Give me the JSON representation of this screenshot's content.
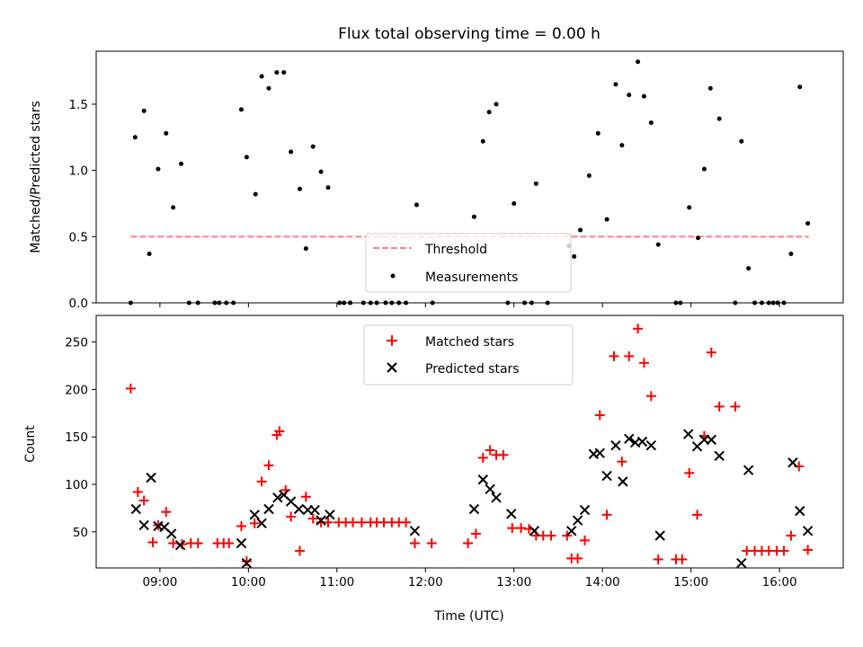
{
  "chart_data": [
    {
      "type": "scatter",
      "title": "Flux total observing time = 0.00 h",
      "xlabel": "",
      "ylabel": "Matched/Predicted stars",
      "ylim": [
        0,
        1.9
      ],
      "yticks": [
        0.0,
        0.5,
        1.0,
        1.5
      ],
      "ytick_labels": [
        "0.0",
        "0.5",
        "1.0",
        "1.5"
      ],
      "xlim_hours": [
        8.28,
        16.72
      ],
      "threshold": {
        "name": "Threshold",
        "value": 0.5,
        "x_start": 8.67,
        "x_end": 16.33,
        "color": "#ff8080"
      },
      "legend": {
        "position": "lower-center",
        "entries": [
          "Threshold",
          "Measurements"
        ]
      },
      "series": [
        {
          "name": "Measurements",
          "color": "#000000",
          "x": [
            8.67,
            8.72,
            8.82,
            8.88,
            8.98,
            9.07,
            9.15,
            9.24,
            9.33,
            9.43,
            9.62,
            9.67,
            9.75,
            9.83,
            9.92,
            9.98,
            10.08,
            10.15,
            10.23,
            10.32,
            10.4,
            10.48,
            10.58,
            10.65,
            10.73,
            10.82,
            10.9,
            11.03,
            11.08,
            11.15,
            11.3,
            11.38,
            11.45,
            11.55,
            11.62,
            11.7,
            11.78,
            11.9,
            12.08,
            12.55,
            12.65,
            12.72,
            12.8,
            12.93,
            13.0,
            13.12,
            13.2,
            13.25,
            13.38,
            13.62,
            13.68,
            13.75,
            13.85,
            13.95,
            14.05,
            14.15,
            14.22,
            14.3,
            14.4,
            14.47,
            14.55,
            14.63,
            14.83,
            14.88,
            14.98,
            15.08,
            15.15,
            15.22,
            15.32,
            15.5,
            15.57,
            15.65,
            15.72,
            15.8,
            15.88,
            15.93,
            15.98,
            16.05,
            16.13,
            16.23,
            16.32
          ],
          "y": [
            0.0,
            1.25,
            1.45,
            0.37,
            1.01,
            1.28,
            0.72,
            1.05,
            0.0,
            0.0,
            0.0,
            0.0,
            0.0,
            0.0,
            1.46,
            1.1,
            0.82,
            1.71,
            1.62,
            1.74,
            1.74,
            1.14,
            0.86,
            0.41,
            1.18,
            0.99,
            0.87,
            0.0,
            0.0,
            0.0,
            0.0,
            0.0,
            0.0,
            0.0,
            0.0,
            0.0,
            0.0,
            0.74,
            0.0,
            0.65,
            1.22,
            1.44,
            1.5,
            0.0,
            0.75,
            0.0,
            0.0,
            0.9,
            0.0,
            0.43,
            0.35,
            0.55,
            0.96,
            1.28,
            0.63,
            1.65,
            1.19,
            1.57,
            1.82,
            1.56,
            1.36,
            0.44,
            0.0,
            0.0,
            0.72,
            0.49,
            1.01,
            1.62,
            1.39,
            0.0,
            1.22,
            0.26,
            0.0,
            0.0,
            0.0,
            0.0,
            0.0,
            0.0,
            0.37,
            1.63,
            0.6
          ]
        }
      ]
    },
    {
      "type": "scatter",
      "title": "",
      "xlabel": "Time (UTC)",
      "ylabel": "Count",
      "ylim": [
        12,
        278
      ],
      "yticks": [
        50,
        100,
        150,
        200,
        250
      ],
      "ytick_labels": [
        "50",
        "100",
        "150",
        "200",
        "250"
      ],
      "xlim_hours": [
        8.28,
        16.72
      ],
      "xticks_hours": [
        9,
        10,
        11,
        12,
        13,
        14,
        15,
        16
      ],
      "xtick_labels": [
        "09:00",
        "10:00",
        "11:00",
        "12:00",
        "13:00",
        "14:00",
        "15:00",
        "16:00"
      ],
      "legend": {
        "position": "upper-center",
        "entries": [
          "Matched stars",
          "Predicted stars"
        ]
      },
      "series": [
        {
          "name": "Matched stars",
          "marker": "+",
          "color": "#ff0000",
          "x": [
            8.67,
            8.75,
            8.82,
            8.92,
            8.98,
            9.07,
            9.15,
            9.25,
            9.35,
            9.43,
            9.65,
            9.72,
            9.78,
            9.92,
            9.98,
            10.07,
            10.15,
            10.23,
            10.32,
            10.35,
            10.42,
            10.48,
            10.58,
            10.65,
            10.73,
            10.82,
            10.9,
            11.02,
            11.1,
            11.18,
            11.28,
            11.38,
            11.45,
            11.53,
            11.62,
            11.7,
            11.78,
            11.88,
            12.07,
            12.48,
            12.57,
            12.65,
            12.73,
            12.8,
            12.88,
            12.98,
            13.08,
            13.17,
            13.25,
            13.33,
            13.42,
            13.6,
            13.65,
            13.72,
            13.8,
            13.97,
            14.05,
            14.13,
            14.22,
            14.3,
            14.4,
            14.47,
            14.55,
            14.63,
            14.83,
            14.9,
            14.98,
            15.07,
            15.15,
            15.23,
            15.32,
            15.5,
            15.63,
            15.72,
            15.8,
            15.88,
            15.97,
            16.05,
            16.13,
            16.22,
            16.32
          ],
          "y": [
            201,
            92,
            83,
            39,
            57,
            71,
            38,
            37,
            38,
            38,
            38,
            38,
            38,
            56,
            19,
            59,
            103,
            120,
            152,
            156,
            94,
            66,
            30,
            87,
            64,
            60,
            60,
            60,
            60,
            60,
            60,
            60,
            60,
            60,
            60,
            60,
            60,
            38,
            38,
            38,
            48,
            128,
            136,
            131,
            131,
            54,
            54,
            53,
            46,
            46,
            46,
            46,
            22,
            22,
            41,
            173,
            68,
            235,
            124,
            235,
            264,
            228,
            193,
            21,
            21,
            21,
            112,
            68,
            151,
            239,
            182,
            182,
            30,
            30,
            30,
            30,
            30,
            30,
            46,
            119,
            31
          ]
        },
        {
          "name": "Predicted stars",
          "marker": "x",
          "color": "#000000",
          "x": [
            8.73,
            8.82,
            8.9,
            8.98,
            9.05,
            9.13,
            9.23,
            9.92,
            9.98,
            10.07,
            10.15,
            10.23,
            10.33,
            10.4,
            10.48,
            10.57,
            10.67,
            10.75,
            10.82,
            10.92,
            11.88,
            12.55,
            12.65,
            12.73,
            12.8,
            12.97,
            13.23,
            13.65,
            13.72,
            13.8,
            13.9,
            13.97,
            14.05,
            14.15,
            14.23,
            14.3,
            14.37,
            14.45,
            14.55,
            14.65,
            14.97,
            15.07,
            15.15,
            15.23,
            15.32,
            15.57,
            15.65,
            16.15,
            16.23,
            16.32
          ],
          "y": [
            74,
            57,
            107,
            56,
            55,
            48,
            36,
            38,
            17,
            68,
            59,
            74,
            86,
            89,
            82,
            74,
            73,
            73,
            62,
            68,
            51,
            74,
            105,
            95,
            86,
            69,
            51,
            51,
            62,
            73,
            132,
            133,
            109,
            141,
            103,
            148,
            144,
            145,
            141,
            46,
            153,
            140,
            147,
            147,
            130,
            17,
            115,
            123,
            72,
            51
          ]
        }
      ]
    }
  ]
}
